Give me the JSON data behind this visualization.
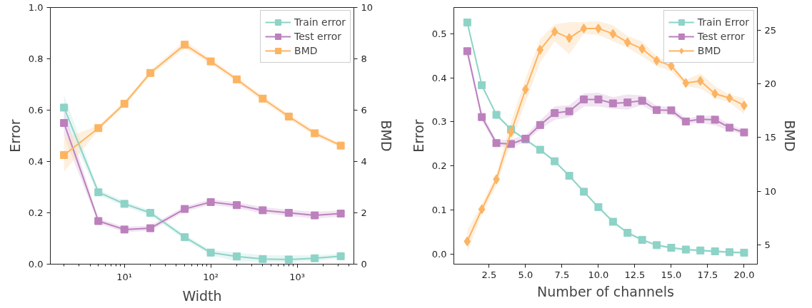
{
  "chart_data": [
    {
      "type": "line",
      "xlabel": "Width",
      "ylabel": "Error",
      "y2label": "BMD",
      "log": "x",
      "x": [
        2,
        5,
        10,
        20,
        50,
        100,
        200,
        400,
        800,
        1600,
        3200
      ],
      "xlim": [
        1.39,
        4540
      ],
      "xticks": [
        {
          "value": 10,
          "label": "10¹"
        },
        {
          "value": 100,
          "label": "10²"
        },
        {
          "value": 1000,
          "label": "10³"
        }
      ],
      "ylim": [
        0,
        1
      ],
      "yticks": [
        {
          "value": 0,
          "label": "0.0"
        },
        {
          "value": 0.2,
          "label": "0.2"
        },
        {
          "value": 0.4,
          "label": "0.4"
        },
        {
          "value": 0.6,
          "label": "0.6"
        },
        {
          "value": 0.8,
          "label": "0.8"
        },
        {
          "value": 1,
          "label": "1.0"
        }
      ],
      "y2lim": [
        0,
        10
      ],
      "y2ticks": [
        0,
        2,
        4,
        6,
        8,
        10
      ],
      "grid": false,
      "legend": "top right",
      "line_style": "solid",
      "series": [
        {
          "name": "Train error",
          "color": "#8dd3c7",
          "marker": "square",
          "values": [
            0.61,
            0.28,
            0.235,
            0.2,
            0.105,
            0.045,
            0.03,
            0.02,
            0.018,
            0.023,
            0.031
          ],
          "lower": [
            0.56,
            0.27,
            0.225,
            0.19,
            0.095,
            0.035,
            0.012,
            0.008,
            0.008,
            0.012,
            0.022
          ],
          "upper": [
            0.66,
            0.29,
            0.245,
            0.21,
            0.115,
            0.055,
            0.045,
            0.035,
            0.035,
            0.035,
            0.04
          ]
        },
        {
          "name": "Test error",
          "color": "#bc80bd",
          "marker": "square",
          "values": [
            0.55,
            0.168,
            0.135,
            0.14,
            0.215,
            0.242,
            0.23,
            0.21,
            0.2,
            0.19,
            0.197
          ],
          "lower": [
            0.5,
            0.158,
            0.125,
            0.13,
            0.205,
            0.232,
            0.218,
            0.198,
            0.188,
            0.178,
            0.185
          ],
          "upper": [
            0.6,
            0.178,
            0.145,
            0.15,
            0.225,
            0.252,
            0.242,
            0.222,
            0.212,
            0.204,
            0.209
          ]
        },
        {
          "name": "BMD",
          "color": "#fdb462",
          "marker": "square",
          "axis": "y2",
          "values": [
            4.25,
            5.3,
            6.25,
            7.45,
            8.55,
            7.9,
            7.2,
            6.45,
            5.75,
            5.1,
            4.62
          ],
          "lower": [
            3.6,
            5.2,
            6.15,
            7.35,
            8.4,
            7.8,
            7.1,
            6.35,
            5.65,
            5.0,
            4.55
          ],
          "upper": [
            4.9,
            5.4,
            6.35,
            7.55,
            8.7,
            8.0,
            7.3,
            6.55,
            5.85,
            5.2,
            4.7
          ]
        }
      ]
    },
    {
      "type": "line",
      "xlabel": "Number of channels",
      "ylabel": "Error",
      "y2label": "BMD",
      "x": [
        1,
        2,
        3,
        4,
        5,
        6,
        7,
        8,
        9,
        10,
        11,
        12,
        13,
        14,
        15,
        16,
        17,
        18,
        19,
        20
      ],
      "xlim": [
        0.08,
        20.91
      ],
      "xticks": [
        {
          "value": 2.5,
          "label": "2.5"
        },
        {
          "value": 5,
          "label": "5.0"
        },
        {
          "value": 7.5,
          "label": "7.5"
        },
        {
          "value": 10,
          "label": "10.0"
        },
        {
          "value": 12.5,
          "label": "12.5"
        },
        {
          "value": 15,
          "label": "15.0"
        },
        {
          "value": 17.5,
          "label": "17.5"
        },
        {
          "value": 20,
          "label": "20.0"
        }
      ],
      "ylim": [
        -0.022,
        0.559
      ],
      "yticks": [
        {
          "value": 0,
          "label": "0.0"
        },
        {
          "value": 0.1,
          "label": "0.1"
        },
        {
          "value": 0.2,
          "label": "0.2"
        },
        {
          "value": 0.3,
          "label": "0.3"
        },
        {
          "value": 0.4,
          "label": "0.4"
        },
        {
          "value": 0.5,
          "label": "0.5"
        }
      ],
      "y2lim": [
        3.17,
        27.16
      ],
      "y2ticks": [
        5,
        10,
        15,
        20,
        25
      ],
      "grid": false,
      "legend": "top right",
      "line_style": "solid",
      "series": [
        {
          "name": "Train Error",
          "color": "#8dd3c7",
          "marker": "square",
          "values": [
            0.525,
            0.383,
            0.316,
            0.283,
            0.26,
            0.237,
            0.211,
            0.178,
            0.142,
            0.107,
            0.074,
            0.049,
            0.033,
            0.021,
            0.015,
            0.011,
            0.009,
            0.007,
            0.005,
            0.004
          ],
          "lower": [
            0.522,
            0.38,
            0.313,
            0.28,
            0.257,
            0.234,
            0.208,
            0.175,
            0.139,
            0.104,
            0.071,
            0.046,
            0.03,
            0.018,
            0.012,
            0.008,
            0.006,
            0.004,
            0.002,
            0.001
          ],
          "upper": [
            0.528,
            0.386,
            0.319,
            0.286,
            0.263,
            0.24,
            0.214,
            0.181,
            0.145,
            0.11,
            0.077,
            0.052,
            0.036,
            0.024,
            0.018,
            0.014,
            0.012,
            0.01,
            0.008,
            0.007
          ]
        },
        {
          "name": "Test error",
          "color": "#bc80bd",
          "marker": "square",
          "values": [
            0.46,
            0.311,
            0.252,
            0.25,
            0.262,
            0.293,
            0.32,
            0.324,
            0.351,
            0.351,
            0.342,
            0.344,
            0.348,
            0.327,
            0.326,
            0.301,
            0.306,
            0.305,
            0.287,
            0.276
          ],
          "lower": [
            0.45,
            0.303,
            0.245,
            0.242,
            0.255,
            0.283,
            0.305,
            0.31,
            0.335,
            0.335,
            0.33,
            0.328,
            0.338,
            0.318,
            0.318,
            0.295,
            0.298,
            0.292,
            0.28,
            0.27
          ],
          "upper": [
            0.472,
            0.32,
            0.259,
            0.26,
            0.27,
            0.303,
            0.335,
            0.338,
            0.364,
            0.366,
            0.356,
            0.362,
            0.36,
            0.336,
            0.334,
            0.308,
            0.313,
            0.315,
            0.294,
            0.282
          ]
        },
        {
          "name": "BMD",
          "color": "#fdb462",
          "marker": "diamond",
          "axis": "y2",
          "values": [
            5.3,
            8.3,
            11.1,
            15.5,
            19.5,
            23.2,
            24.9,
            24.3,
            25.2,
            25.2,
            24.7,
            23.9,
            23.3,
            22.2,
            21.7,
            20.1,
            20.3,
            19.1,
            18.7,
            18.0
          ],
          "lower": [
            4.3,
            7.8,
            10.5,
            14.5,
            18.3,
            22.0,
            24.0,
            22.8,
            24.7,
            24.6,
            24.0,
            23.4,
            22.6,
            21.7,
            21.2,
            19.8,
            19.6,
            18.7,
            18.3,
            17.2
          ],
          "upper": [
            6.3,
            8.8,
            11.6,
            16.5,
            20.5,
            24.2,
            25.6,
            25.8,
            25.8,
            25.9,
            25.5,
            24.5,
            24.0,
            22.6,
            22.0,
            20.4,
            21.0,
            19.8,
            19.0,
            18.7
          ]
        }
      ]
    }
  ]
}
